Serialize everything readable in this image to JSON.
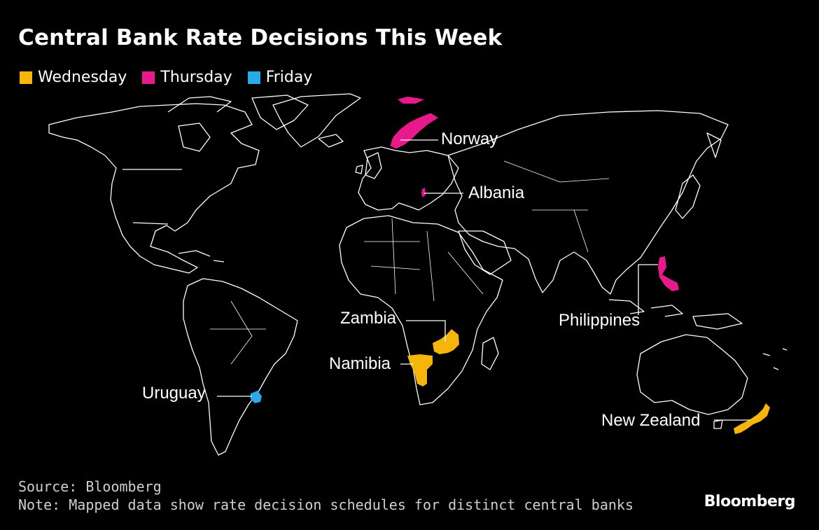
{
  "title": "Central Bank Rate Decisions This Week",
  "colors": {
    "wednesday": "#f5b50a",
    "thursday": "#e8198b",
    "friday": "#2aa9e8",
    "land_outline": "#ffffff",
    "background": "#000000"
  },
  "legend": [
    {
      "label": "Wednesday",
      "color_key": "wednesday"
    },
    {
      "label": "Thursday",
      "color_key": "thursday"
    },
    {
      "label": "Friday",
      "color_key": "friday"
    }
  ],
  "countries": {
    "norway": {
      "label": "Norway",
      "day": "Thursday"
    },
    "albania": {
      "label": "Albania",
      "day": "Thursday"
    },
    "philippines": {
      "label": "Philippines",
      "day": "Thursday"
    },
    "zambia": {
      "label": "Zambia",
      "day": "Wednesday"
    },
    "namibia": {
      "label": "Namibia",
      "day": "Wednesday"
    },
    "new_zealand": {
      "label": "New Zealand",
      "day": "Wednesday"
    },
    "uruguay": {
      "label": "Uruguay",
      "day": "Friday"
    }
  },
  "footer": {
    "source": "Source: Bloomberg",
    "note": "Note: Mapped data show rate decision schedules for distinct central banks"
  },
  "brand": "Bloomberg"
}
